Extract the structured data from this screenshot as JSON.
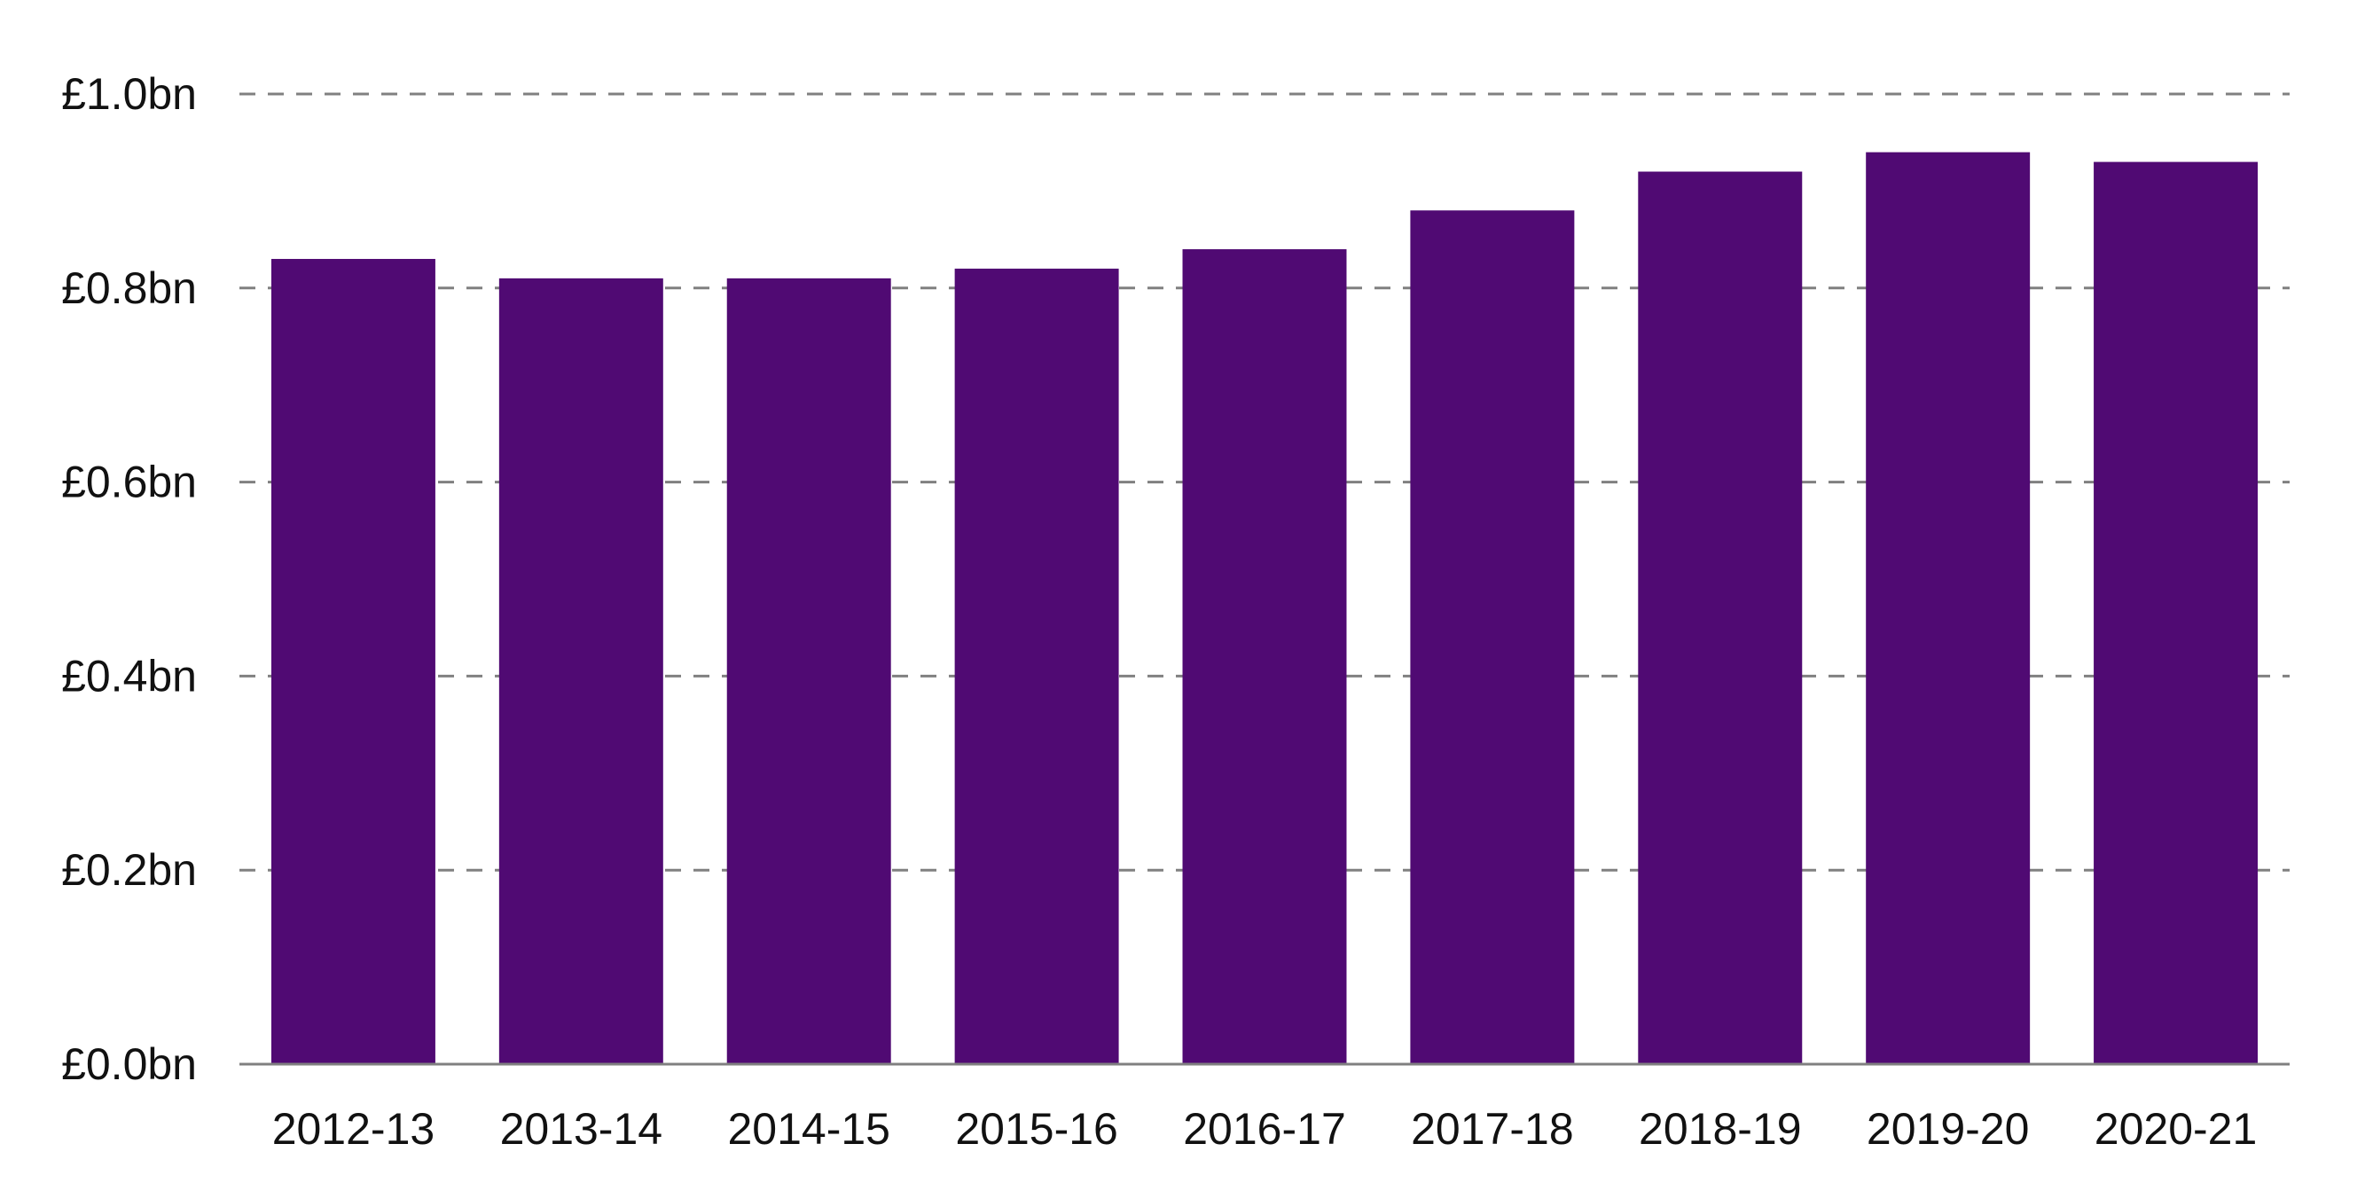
{
  "chart_data": {
    "type": "bar",
    "title": "",
    "xlabel": "",
    "ylabel": "",
    "categories": [
      "2012-13",
      "2013-14",
      "2014-15",
      "2015-16",
      "2016-17",
      "2017-18",
      "2018-19",
      "2019-20",
      "2020-21"
    ],
    "values": [
      0.83,
      0.81,
      0.81,
      0.82,
      0.84,
      0.88,
      0.92,
      0.94,
      0.93
    ],
    "unit": "£bn",
    "ylim": [
      0,
      1.0
    ],
    "yticks": [
      0.0,
      0.2,
      0.4,
      0.6,
      0.8,
      1.0
    ],
    "ytick_labels": [
      "£0.0bn",
      "£0.2bn",
      "£0.4bn",
      "£0.6bn",
      "£0.8bn",
      "£1.0bn"
    ],
    "grid": true,
    "legend": "none",
    "bar_color": "#500a73"
  }
}
